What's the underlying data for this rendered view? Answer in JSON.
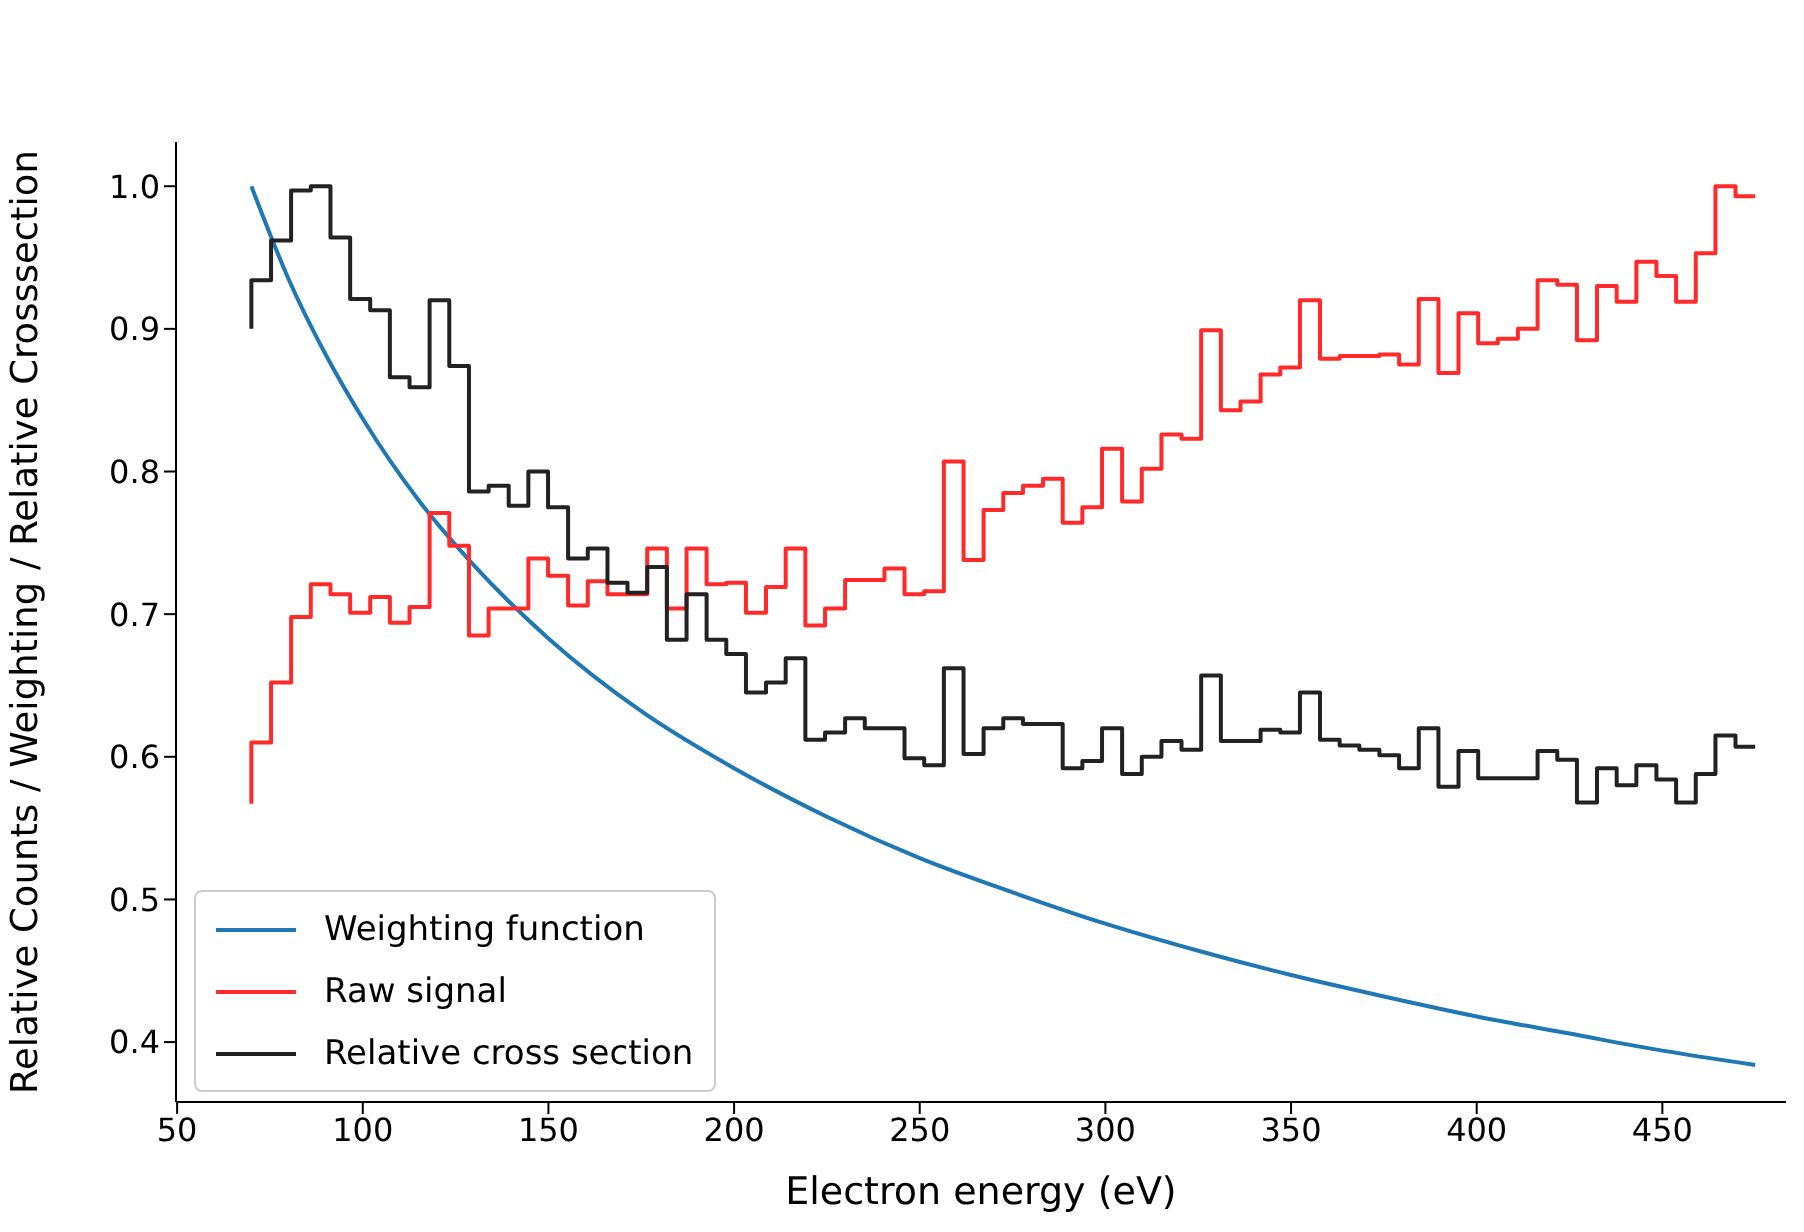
{
  "chart_data": {
    "type": "line",
    "xlabel": "Electron energy (eV)",
    "ylabel": "Relative Counts / Weighting / Relative Crosssection",
    "xlim": [
      49.7,
      483.3
    ],
    "ylim": [
      0.358,
      1.031
    ],
    "xticks": [
      50,
      100,
      150,
      200,
      250,
      300,
      350,
      400,
      450
    ],
    "yticks": [
      0.4,
      0.5,
      0.6,
      0.7,
      0.8,
      0.9,
      {
        "value": 1.0,
        "label": "1.0"
      }
    ],
    "grid": false,
    "legend": "bottom left",
    "marker": "none",
    "series": [
      {
        "name": "Weighting function",
        "type": "line",
        "color": "#1f77b4",
        "x": [
          70,
          80,
          90,
          100,
          115,
          130,
          150,
          175,
          200,
          225,
          250,
          275,
          300,
          325,
          350,
          375,
          400,
          425,
          450,
          475
        ],
        "values": [
          1.0,
          0.935,
          0.882,
          0.837,
          0.78,
          0.734,
          0.683,
          0.632,
          0.592,
          0.558,
          0.529,
          0.505,
          0.483,
          0.464,
          0.447,
          0.432,
          0.418,
          0.406,
          0.394,
          0.384
        ]
      },
      {
        "name": "Raw signal",
        "type": "step",
        "color": "#ff2a2a",
        "x": [
          70,
          75.3,
          80.7,
          86.0,
          91.3,
          96.6,
          102.0,
          107.3,
          112.6,
          118.0,
          123.3,
          128.6,
          133.9,
          139.3,
          144.6,
          149.9,
          155.3,
          160.6,
          165.9,
          171.3,
          176.6,
          181.9,
          187.2,
          192.6,
          197.9,
          203.2,
          208.6,
          213.9,
          219.2,
          224.5,
          229.9,
          235.2,
          240.5,
          245.9,
          251.2,
          256.5,
          261.8,
          267.2,
          272.5,
          277.8,
          283.2,
          288.5,
          293.8,
          299.1,
          304.5,
          309.8,
          315.1,
          320.5,
          325.8,
          331.1,
          336.4,
          341.8,
          347.1,
          352.4,
          357.8,
          363.1,
          368.4,
          373.8,
          379.1,
          384.4,
          389.7,
          395.1,
          400.4,
          405.7,
          411.1,
          416.4,
          421.7,
          427.0,
          432.4,
          437.7,
          443.0,
          448.4,
          453.7,
          459.0,
          464.3,
          469.7,
          475.0
        ],
        "values": [
          0.567,
          0.61,
          0.652,
          0.698,
          0.721,
          0.714,
          0.701,
          0.712,
          0.694,
          0.705,
          0.771,
          0.748,
          0.685,
          0.704,
          0.704,
          0.739,
          0.727,
          0.706,
          0.723,
          0.714,
          0.714,
          0.746,
          0.704,
          0.746,
          0.721,
          0.722,
          0.701,
          0.719,
          0.746,
          0.692,
          0.704,
          0.724,
          0.724,
          0.732,
          0.714,
          0.716,
          0.807,
          0.738,
          0.773,
          0.785,
          0.79,
          0.795,
          0.764,
          0.775,
          0.816,
          0.779,
          0.802,
          0.826,
          0.823,
          0.899,
          0.843,
          0.849,
          0.868,
          0.873,
          0.92,
          0.879,
          0.881,
          0.881,
          0.882,
          0.875,
          0.921,
          0.869,
          0.911,
          0.89,
          0.893,
          0.9,
          0.934,
          0.931,
          0.892,
          0.93,
          0.919,
          0.947,
          0.937,
          0.919,
          0.953,
          1.0,
          0.993
        ]
      },
      {
        "name": "Relative cross section",
        "type": "step",
        "color": "#222222",
        "x": [
          70,
          75.3,
          80.7,
          86.0,
          91.3,
          96.6,
          102.0,
          107.3,
          112.6,
          118.0,
          123.3,
          128.6,
          133.9,
          139.3,
          144.6,
          149.9,
          155.3,
          160.6,
          165.9,
          171.3,
          176.6,
          181.9,
          187.2,
          192.6,
          197.9,
          203.2,
          208.6,
          213.9,
          219.2,
          224.5,
          229.9,
          235.2,
          240.5,
          245.9,
          251.2,
          256.5,
          261.8,
          267.2,
          272.5,
          277.8,
          283.2,
          288.5,
          293.8,
          299.1,
          304.5,
          309.8,
          315.1,
          320.5,
          325.8,
          331.1,
          336.4,
          341.8,
          347.1,
          352.4,
          357.8,
          363.1,
          368.4,
          373.8,
          379.1,
          384.4,
          389.7,
          395.1,
          400.4,
          405.7,
          411.1,
          416.4,
          421.7,
          427.0,
          432.4,
          437.7,
          443.0,
          448.4,
          453.7,
          459.0,
          464.3,
          469.7,
          475.0
        ],
        "values": [
          0.9,
          0.934,
          0.962,
          0.997,
          1.0,
          0.964,
          0.921,
          0.913,
          0.866,
          0.859,
          0.92,
          0.874,
          0.786,
          0.79,
          0.776,
          0.8,
          0.775,
          0.739,
          0.746,
          0.722,
          0.715,
          0.733,
          0.682,
          0.714,
          0.682,
          0.672,
          0.645,
          0.652,
          0.669,
          0.612,
          0.617,
          0.627,
          0.62,
          0.62,
          0.599,
          0.594,
          0.662,
          0.602,
          0.62,
          0.627,
          0.623,
          0.623,
          0.592,
          0.597,
          0.62,
          0.588,
          0.6,
          0.611,
          0.605,
          0.657,
          0.611,
          0.611,
          0.619,
          0.617,
          0.645,
          0.612,
          0.608,
          0.605,
          0.601,
          0.592,
          0.62,
          0.579,
          0.604,
          0.585,
          0.585,
          0.585,
          0.604,
          0.598,
          0.568,
          0.592,
          0.58,
          0.594,
          0.584,
          0.568,
          0.588,
          0.615,
          0.607
        ]
      }
    ]
  }
}
